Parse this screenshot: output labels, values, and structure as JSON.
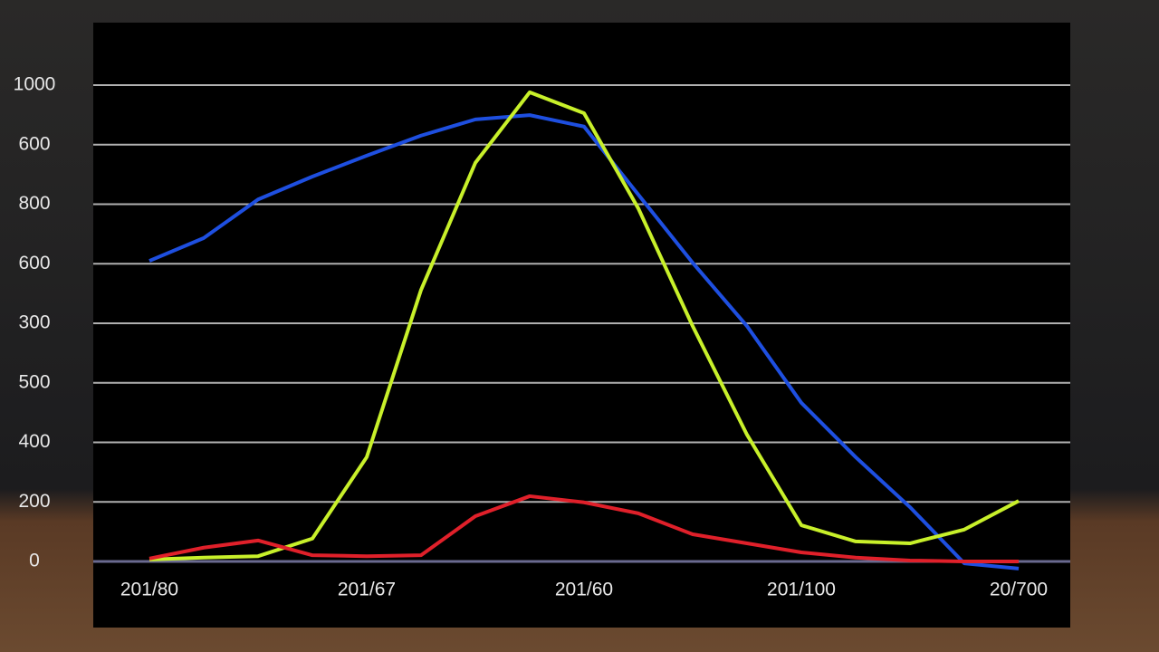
{
  "chart_data": {
    "type": "line",
    "categories": [
      "201/80",
      null,
      null,
      null,
      "201/67",
      null,
      null,
      null,
      "201/60",
      null,
      null,
      null,
      "201/100",
      null,
      null,
      null,
      "20/700"
    ],
    "series": [
      {
        "color": "#1e4fe0",
        "values": [
          631,
          679,
          760,
          808,
          852,
          894,
          928,
          937,
          913,
          770,
          627,
          494,
          333,
          219,
          114,
          -4,
          -15
        ]
      },
      {
        "color": "#c8f02a",
        "values": [
          4,
          8,
          11,
          48,
          219,
          570,
          837,
          985,
          941,
          741,
          494,
          266,
          76,
          42,
          38,
          67,
          127
        ]
      },
      {
        "color": "#e0202a",
        "values": [
          6,
          29,
          44,
          13,
          11,
          13,
          95,
          137,
          124,
          101,
          57,
          38,
          19,
          8,
          2,
          0,
          0
        ]
      }
    ],
    "ylim": [
      0,
      1000
    ],
    "yticks": [
      0,
      {
        "value": 125,
        "label": "200"
      },
      {
        "value": 250,
        "label": "400"
      },
      {
        "value": 375,
        "label": "500"
      },
      {
        "value": 500,
        "label": "300"
      },
      {
        "value": 625,
        "label": "600"
      },
      {
        "value": 750,
        "label": "800"
      },
      {
        "value": 875,
        "label": "600"
      },
      1000
    ],
    "grid": true
  }
}
